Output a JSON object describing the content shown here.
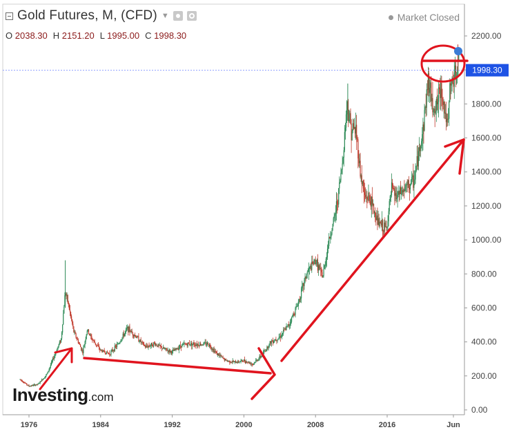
{
  "header": {
    "title": "Gold Futures, M, (CFD)",
    "dropdown_icon": "caret-down-icon",
    "ohlc": {
      "open_label": "O",
      "open": "2038.30",
      "high_label": "H",
      "high": "2151.20",
      "low_label": "L",
      "low": "1995.00",
      "close_label": "C",
      "close": "1998.30"
    },
    "status": "Market Closed"
  },
  "logo": {
    "main": "Investing",
    "suffix": ".com"
  },
  "price_tag": "1998.30",
  "colors": {
    "up": "#2e8b57",
    "down": "#c0392b",
    "annotation": "#e0141e",
    "price_line": "#8ea0ff",
    "price_tag_bg": "#1e53e5"
  },
  "chart_data": {
    "type": "candlestick",
    "title": "Gold Futures, M, (CFD)",
    "xlabel": "",
    "ylabel": "",
    "ylim": [
      0,
      2300
    ],
    "xlim": [
      1973.5,
      2024.8
    ],
    "y_ticks": [
      "0.00",
      "200.00",
      "400.00",
      "600.00",
      "800.00",
      "1000.00",
      "1200.00",
      "1400.00",
      "1600.00",
      "1800.00",
      "2000.00",
      "2200.00"
    ],
    "x_ticks": [
      "1976",
      "1984",
      "1992",
      "2000",
      "2008",
      "2016",
      "Jun"
    ],
    "x_tick_positions": [
      1976,
      1984,
      1992,
      2000,
      2008,
      2016,
      2023.4
    ],
    "series": [
      {
        "x": [
          1975.0,
          1976.0,
          1977.0,
          1978.0,
          1979.0,
          1979.6,
          1980.05,
          1980.4,
          1981.0,
          1982.0,
          1982.5,
          1983.0,
          1984.0,
          1985.0,
          1986.0,
          1987.0,
          1988.0,
          1989.0,
          1990.0,
          1991.0,
          1992.0,
          1993.0,
          1994.0,
          1995.0,
          1996.0,
          1997.0,
          1998.0,
          1999.0,
          2000.0,
          2001.0,
          2002.0,
          2003.0,
          2004.0,
          2005.0,
          2006.0,
          2007.0,
          2008.0,
          2008.8,
          2009.5,
          2010.0,
          2010.5,
          2011.0,
          2011.5,
          2012.0,
          2012.5,
          2013.0,
          2013.5,
          2014.0,
          2015.0,
          2015.9,
          2016.5,
          2017.0,
          2018.0,
          2019.0,
          2019.5,
          2020.0,
          2020.6,
          2021.0,
          2021.5,
          2022.0,
          2022.8,
          2023.0,
          2023.5,
          2024.0
        ],
        "price": [
          180,
          140,
          150,
          210,
          340,
          420,
          700,
          620,
          460,
          340,
          470,
          420,
          350,
          330,
          390,
          480,
          430,
          370,
          390,
          360,
          340,
          380,
          390,
          385,
          390,
          330,
          290,
          280,
          290,
          270,
          320,
          400,
          430,
          500,
          620,
          800,
          880,
          780,
          1000,
          1100,
          1250,
          1450,
          1800,
          1650,
          1650,
          1400,
          1250,
          1250,
          1100,
          1060,
          1300,
          1250,
          1300,
          1350,
          1500,
          1650,
          1950,
          1800,
          1780,
          1900,
          1650,
          1900,
          1950,
          2038
        ]
      }
    ]
  }
}
